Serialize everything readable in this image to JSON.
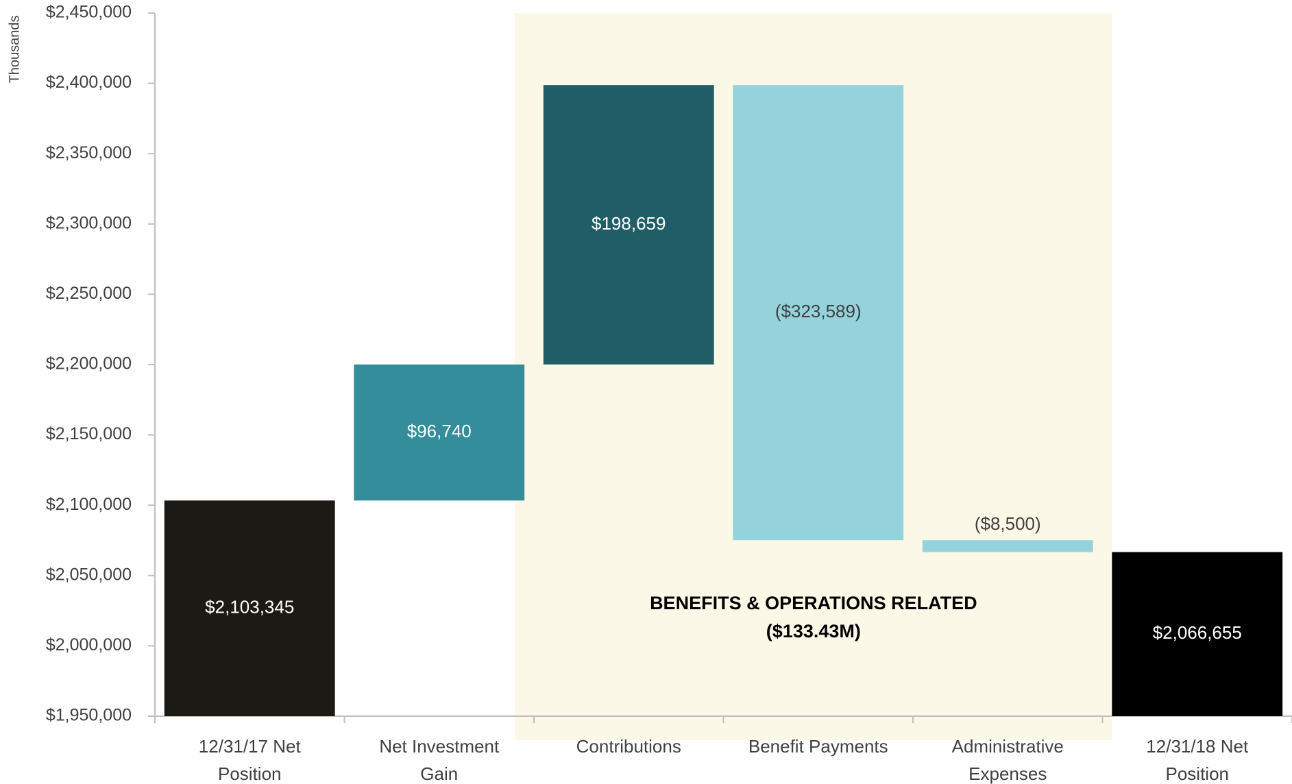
{
  "chart_data": {
    "type": "waterfall",
    "y_label": "Thousands",
    "categories": [
      "12/31/17 Net Position",
      "Net Investment Gain",
      "Contributions",
      "Benefit Payments",
      "Administrative Expenses",
      "12/31/18 Net Position"
    ],
    "values": [
      2103345,
      96740,
      198659,
      -323589,
      -8500,
      2066655
    ],
    "value_labels": [
      "$2,103,345",
      "$96,740",
      "$198,659",
      "($323,589)",
      "($8,500)",
      "$2,066,655"
    ],
    "colors": [
      "#1c1a14",
      "#338d9b",
      "#215d66",
      "#95d3dc",
      "#95d3dc",
      "#000000"
    ],
    "ylim": [
      1950000,
      2450000
    ],
    "yticks": [
      {
        "value": 1950000,
        "label": "$1,950,000"
      },
      {
        "value": 2000000,
        "label": "$2,000,000"
      },
      {
        "value": 2050000,
        "label": "$2,050,000"
      },
      {
        "value": 2100000,
        "label": "$2,100,000"
      },
      {
        "value": 2150000,
        "label": "$2,150,000"
      },
      {
        "value": 2200000,
        "label": "$2,200,000"
      },
      {
        "value": 2250000,
        "label": "$2,250,000"
      },
      {
        "value": 2300000,
        "label": "$2,300,000"
      },
      {
        "value": 2350000,
        "label": "$2,350,000"
      },
      {
        "value": 2400000,
        "label": "$2,400,000"
      },
      {
        "value": 2450000,
        "label": "$2,450,000"
      }
    ],
    "annotation": {
      "lines": [
        "BENEFITS & OPERATIONS RELATED",
        "($133.43M)"
      ],
      "span": [
        2,
        4
      ],
      "color": "#fcf8e8"
    }
  }
}
